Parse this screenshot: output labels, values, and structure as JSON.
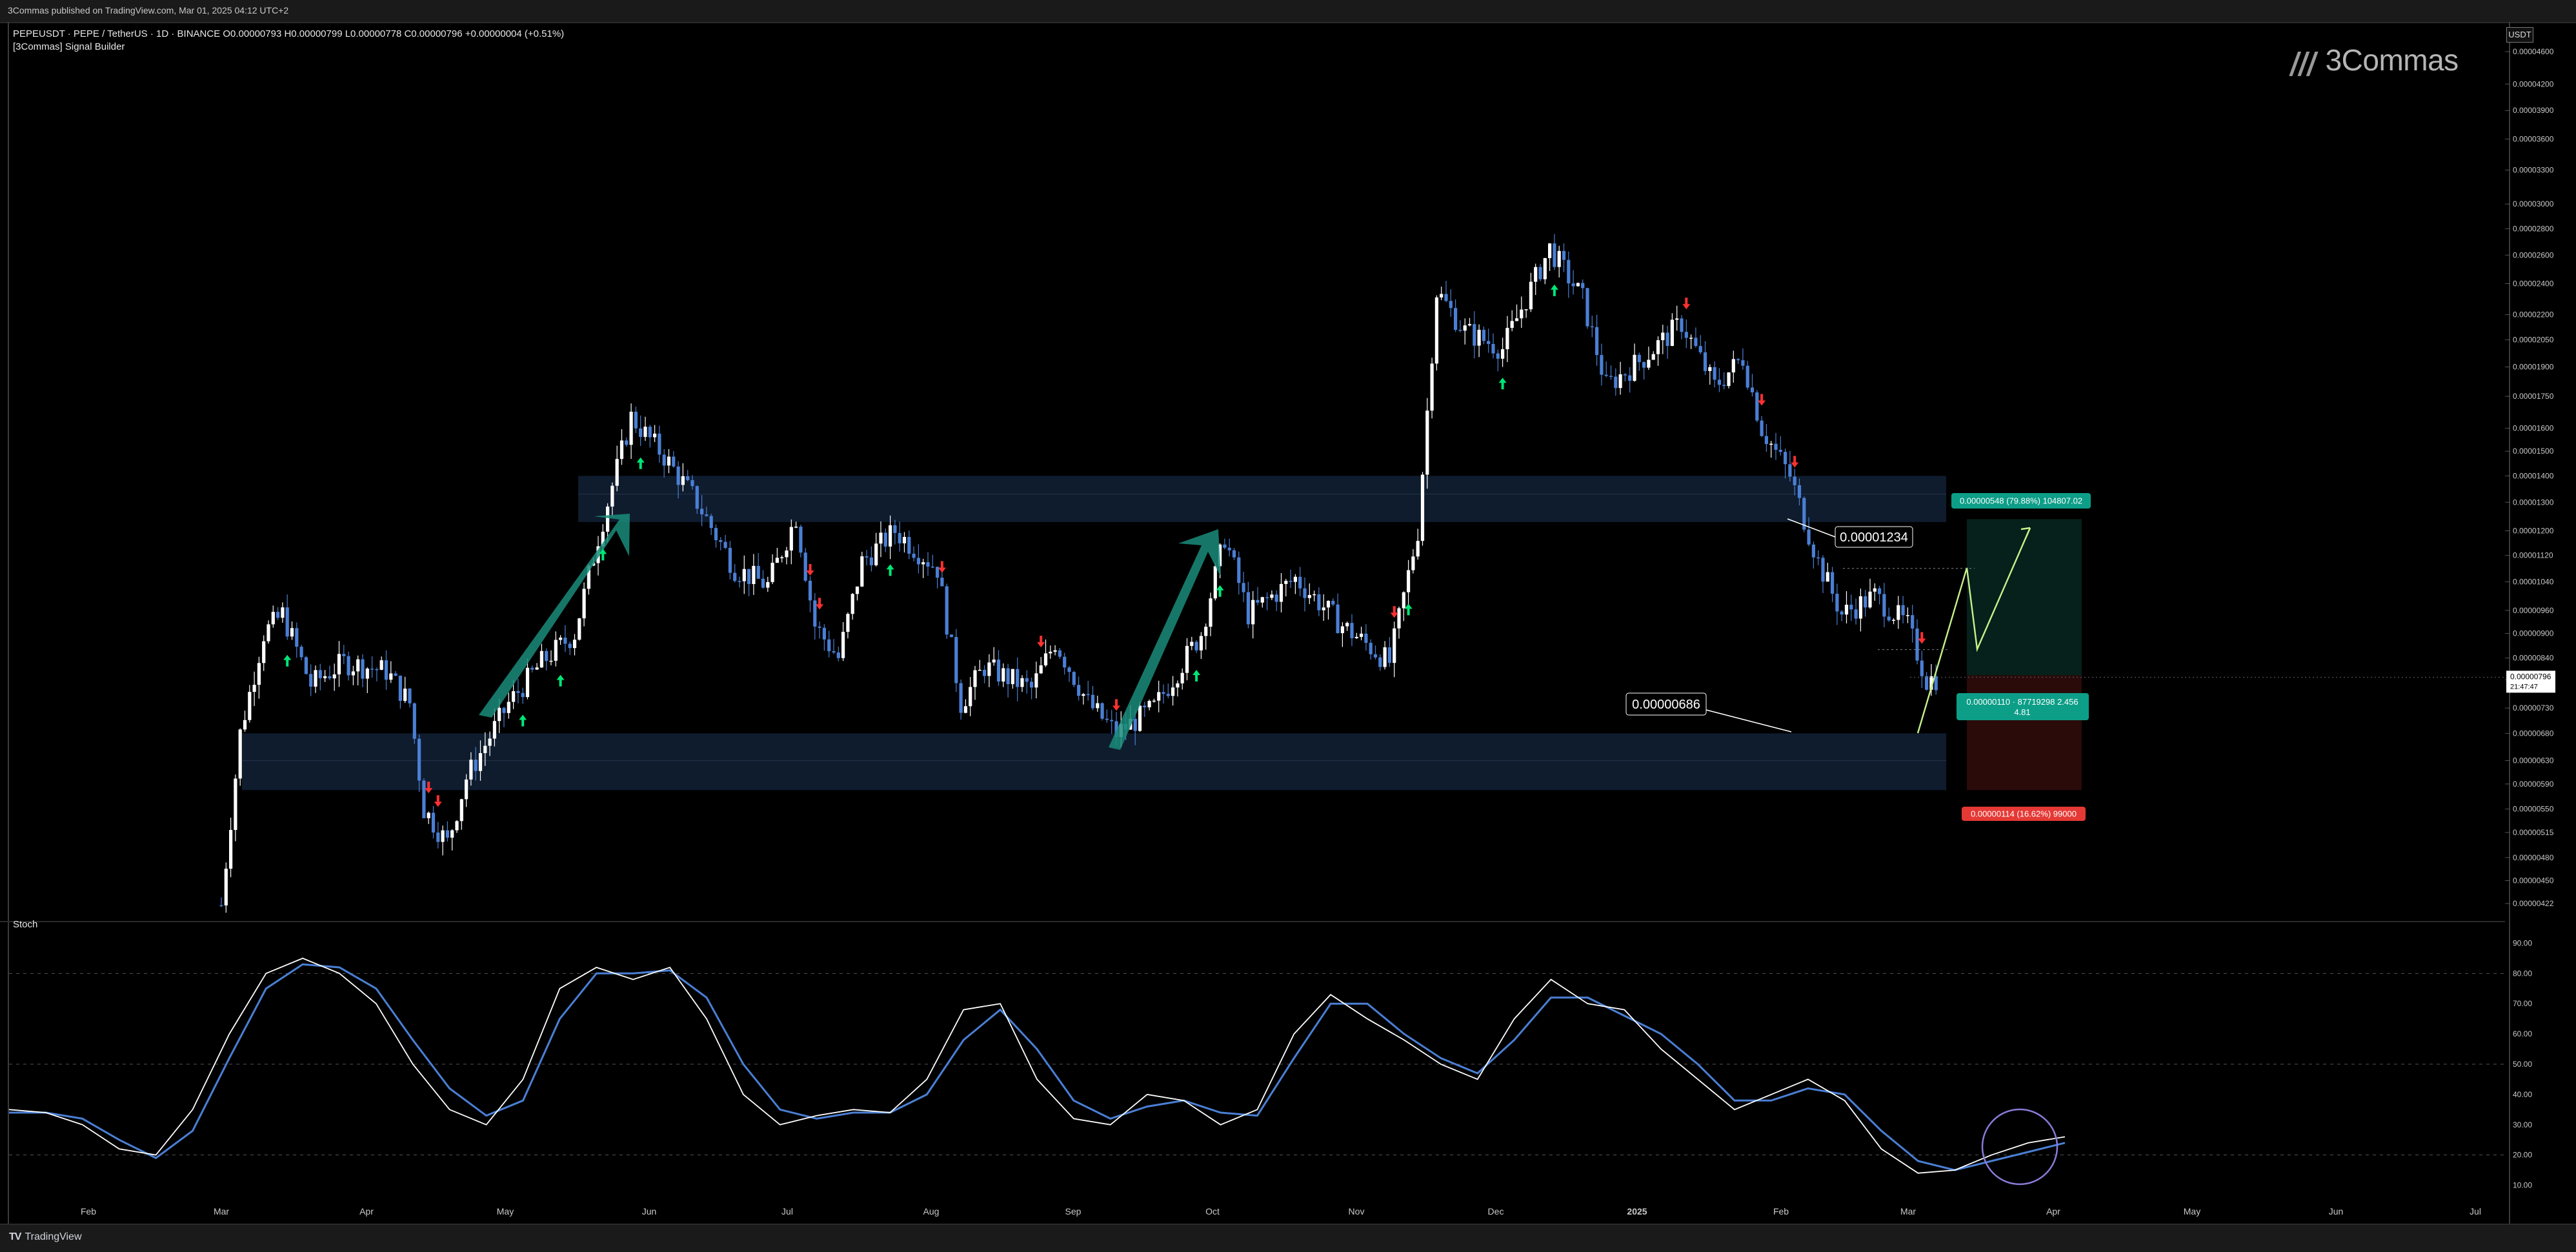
{
  "publisher_line": "3Commas published on TradingView.com, Mar 01, 2025 04:12 UTC+2",
  "legend": {
    "symbol_line": "PEPEUSDT · PEPE / TetherUS · 1D · BINANCE  O0.00000793  H0.00000799  L0.00000778  C0.00000796  +0.00000004 (+0.51%)",
    "indicator_line": "[3Commas] Signal Builder"
  },
  "brand_logo": "3Commas",
  "currency_button": "USDT",
  "stoch_label": "Stoch",
  "footer_brand": "TradingView",
  "colors": {
    "background": "#000000",
    "candle_up": "#ffffff",
    "candle_down": "#4a7fd4",
    "zone": "#0f1c2e",
    "green_arrow": "#00e676",
    "red_arrow": "#ff3030",
    "teal_arrow": "#1a8c7a",
    "target": "#0d9e88",
    "stop": "#e53935",
    "stoch_k": "#ffffff",
    "stoch_d": "#4a7fd4"
  },
  "chart_data": {
    "type": "candlestick",
    "price_axis": {
      "scale": "log",
      "ticks": [
        "0.00004600",
        "0.00004200",
        "0.00003900",
        "0.00003600",
        "0.00003300",
        "0.00003000",
        "0.00002800",
        "0.00002600",
        "0.00002400",
        "0.00002200",
        "0.00002050",
        "0.00001900",
        "0.00001750",
        "0.00001600",
        "0.00001500",
        "0.00001400",
        "0.00001300",
        "0.00001200",
        "0.00001120",
        "0.00001040",
        "0.00000960",
        "0.00000900",
        "0.00000840",
        "0.00000790",
        "0.00000730",
        "0.00000680",
        "0.00000630",
        "0.00000590",
        "0.00000550",
        "0.00000515",
        "0.00000480",
        "0.00000450",
        "0.00000422"
      ],
      "current_price": "0.00000796",
      "countdown": "21:47:47"
    },
    "time_axis": [
      "Feb",
      "Mar",
      "Apr",
      "May",
      "Jun",
      "Jul",
      "Aug",
      "Sep",
      "Oct",
      "Nov",
      "Dec",
      "2025",
      "Feb",
      "Mar",
      "Apr",
      "May",
      "Jun",
      "Jul"
    ],
    "annotations": {
      "resistance_label": "0.00001234",
      "support_label": "0.00000686",
      "target_label": "0.00000548 (79.88%) 104807.02",
      "entry_label_line1": "0.00000110 · 87719298 2.456",
      "entry_label_line2": "4.81",
      "stop_label": "0.00000114 (16.62%) 99000"
    },
    "price_path": [
      [
        "2024-03-01",
        4.2e-06
      ],
      [
        "2024-03-05",
        6.8e-06
      ],
      [
        "2024-03-10",
        9e-06
      ],
      [
        "2024-03-14",
        9.5e-06
      ],
      [
        "2024-03-20",
        7.8e-06
      ],
      [
        "2024-03-27",
        8.3e-06
      ],
      [
        "2024-04-05",
        8.1e-06
      ],
      [
        "2024-04-10",
        7.4e-06
      ],
      [
        "2024-04-13",
        5.5e-06
      ],
      [
        "2024-04-18",
        5e-06
      ],
      [
        "2024-04-22",
        6e-06
      ],
      [
        "2024-05-01",
        7.4e-06
      ],
      [
        "2024-05-08",
        8.3e-06
      ],
      [
        "2024-05-15",
        9e-06
      ],
      [
        "2024-05-20",
        1.18e-05
      ],
      [
        "2024-05-27",
        1.65e-05
      ],
      [
        "2024-06-03",
        1.48e-05
      ],
      [
        "2024-06-10",
        1.3e-05
      ],
      [
        "2024-06-18",
        1.08e-05
      ],
      [
        "2024-06-25",
        1.03e-05
      ],
      [
        "2024-07-01",
        1.25e-05
      ],
      [
        "2024-07-05",
        9.2e-06
      ],
      [
        "2024-07-10",
        8.4e-06
      ],
      [
        "2024-07-15",
        1.1e-05
      ],
      [
        "2024-07-22",
        1.2e-05
      ],
      [
        "2024-07-31",
        1.08e-05
      ],
      [
        "2024-08-05",
        7.4e-06
      ],
      [
        "2024-08-10",
        8.2e-06
      ],
      [
        "2024-08-20",
        7.7e-06
      ],
      [
        "2024-08-25",
        8.8e-06
      ],
      [
        "2024-09-01",
        7.4e-06
      ],
      [
        "2024-09-07",
        6.8e-06
      ],
      [
        "2024-09-15",
        7.3e-06
      ],
      [
        "2024-09-25",
        9e-06
      ],
      [
        "2024-09-30",
        1.18e-05
      ],
      [
        "2024-10-05",
        9.5e-06
      ],
      [
        "2024-10-15",
        1.05e-05
      ],
      [
        "2024-10-25",
        9.2e-06
      ],
      [
        "2024-11-04",
        8.3e-06
      ],
      [
        "2024-11-10",
        1.2e-05
      ],
      [
        "2024-11-14",
        2.35e-05
      ],
      [
        "2024-11-20",
        2.1e-05
      ],
      [
        "2024-11-28",
        2e-05
      ],
      [
        "2024-12-08",
        2.65e-05
      ],
      [
        "2024-12-15",
        2.3e-05
      ],
      [
        "2024-12-20",
        1.8e-05
      ],
      [
        "2024-12-28",
        1.95e-05
      ],
      [
        "2025-01-05",
        2.15e-05
      ],
      [
        "2025-01-12",
        1.8e-05
      ],
      [
        "2025-01-18",
        1.95e-05
      ],
      [
        "2025-01-22",
        1.6e-05
      ],
      [
        "2025-01-28",
        1.4e-05
      ],
      [
        "2025-02-03",
        1.1e-05
      ],
      [
        "2025-02-08",
        9.5e-06
      ],
      [
        "2025-02-15",
        1e-05
      ],
      [
        "2025-02-22",
        9.2e-06
      ],
      [
        "2025-02-26",
        7.9e-06
      ],
      [
        "2025-03-01",
        7.96e-06
      ]
    ],
    "stoch": {
      "axis_ticks": [
        "90.00",
        "80.00",
        "70.00",
        "60.00",
        "50.00",
        "40.00",
        "30.00",
        "20.00",
        "10.00"
      ],
      "levels": [
        80,
        50,
        20
      ],
      "k": [
        35,
        34,
        30,
        22,
        20,
        35,
        60,
        80,
        85,
        80,
        70,
        50,
        35,
        30,
        45,
        75,
        82,
        78,
        82,
        65,
        40,
        30,
        33,
        35,
        34,
        45,
        68,
        70,
        45,
        32,
        30,
        40,
        38,
        30,
        35,
        60,
        73,
        65,
        58,
        50,
        45,
        65,
        78,
        70,
        68,
        55,
        45,
        35,
        40,
        45,
        38,
        22,
        14,
        15,
        20,
        24,
        26
      ],
      "d": [
        34,
        34,
        32,
        25,
        19,
        28,
        52,
        75,
        83,
        82,
        75,
        58,
        42,
        33,
        38,
        65,
        80,
        80,
        81,
        72,
        50,
        35,
        32,
        34,
        34,
        40,
        58,
        68,
        55,
        38,
        32,
        36,
        38,
        34,
        33,
        52,
        70,
        70,
        60,
        52,
        47,
        58,
        72,
        72,
        66,
        60,
        50,
        38,
        38,
        42,
        40,
        28,
        18,
        15,
        18,
        21,
        24
      ]
    }
  }
}
